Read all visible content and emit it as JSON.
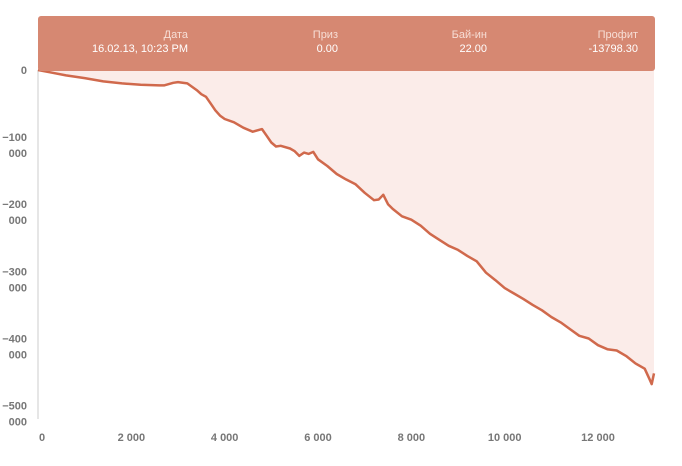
{
  "tooltip": {
    "columns": [
      {
        "header": "Дата",
        "value": "16.02.13, 10:23 PM"
      },
      {
        "header": "Приз",
        "value": "0.00"
      },
      {
        "header": "Бай-ин",
        "value": "22.00"
      },
      {
        "header": "Профит",
        "value": "-13798.30"
      }
    ]
  },
  "colors": {
    "line": "#d0694c",
    "area": "#fbece9",
    "tooltip_bg": "#d68872",
    "axis_text": "#777777"
  },
  "chart_data": {
    "type": "area",
    "title": "",
    "xlabel": "",
    "ylabel": "",
    "xlim": [
      0,
      13200
    ],
    "ylim": [
      -520000,
      0
    ],
    "x_ticks": [
      {
        "value": 0,
        "label": "0"
      },
      {
        "value": 2000,
        "label": "2 000"
      },
      {
        "value": 4000,
        "label": "4 000"
      },
      {
        "value": 6000,
        "label": "6 000"
      },
      {
        "value": 8000,
        "label": "8 000"
      },
      {
        "value": 10000,
        "label": "10 000"
      },
      {
        "value": 12000,
        "label": "12 000"
      }
    ],
    "y_ticks": [
      {
        "value": 0,
        "lines": [
          "0"
        ]
      },
      {
        "value": -100000,
        "lines": [
          "−100",
          "000"
        ]
      },
      {
        "value": -200000,
        "lines": [
          "−200",
          "000"
        ]
      },
      {
        "value": -300000,
        "lines": [
          "−300",
          "000"
        ]
      },
      {
        "value": -400000,
        "lines": [
          "−400",
          "000"
        ]
      },
      {
        "value": -500000,
        "lines": [
          "−500",
          "000"
        ]
      }
    ],
    "series": [
      {
        "x": [
          0,
          300,
          600,
          1000,
          1400,
          1800,
          2200,
          2600,
          2700,
          2900,
          3000,
          3200,
          3400,
          3500,
          3600,
          3700,
          3800,
          3900,
          4000,
          4200,
          4400,
          4600,
          4800,
          4900,
          5000,
          5100,
          5200,
          5400,
          5500,
          5600,
          5700,
          5800,
          5900,
          6000,
          6200,
          6400,
          6600,
          6800,
          7000,
          7200,
          7300,
          7400,
          7500,
          7600,
          7800,
          8000,
          8200,
          8400,
          8600,
          8800,
          9000,
          9200,
          9400,
          9600,
          9800,
          10000,
          10200,
          10400,
          10600,
          10800,
          11000,
          11200,
          11400,
          11600,
          11800,
          12000,
          12200,
          12400,
          12600,
          12800,
          13000,
          13100,
          13150,
          13200
        ],
        "y": [
          0,
          -4000,
          -8000,
          -12000,
          -17000,
          -20000,
          -22000,
          -23000,
          -23000,
          -19000,
          -18000,
          -20000,
          -30000,
          -36000,
          -40000,
          -50000,
          -60000,
          -68000,
          -73000,
          -78000,
          -86000,
          -92000,
          -88000,
          -98000,
          -108000,
          -114000,
          -113000,
          -117000,
          -121000,
          -128000,
          -123000,
          -125000,
          -122000,
          -133000,
          -143000,
          -155000,
          -163000,
          -170000,
          -183000,
          -194000,
          -193000,
          -186000,
          -200000,
          -207000,
          -218000,
          -223000,
          -232000,
          -244000,
          -253000,
          -262000,
          -268000,
          -277000,
          -285000,
          -302000,
          -313000,
          -325000,
          -333000,
          -341000,
          -350000,
          -358000,
          -368000,
          -376000,
          -386000,
          -396000,
          -400000,
          -410000,
          -416000,
          -418000,
          -426000,
          -437000,
          -445000,
          -460000,
          -468000,
          -452000
        ]
      }
    ],
    "grid": false,
    "legend": "none"
  }
}
